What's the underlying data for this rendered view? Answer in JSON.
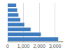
{
  "chart_data": {
    "type": "bar",
    "orientation": "horizontal",
    "categories": [
      null,
      null,
      null,
      null,
      null,
      null,
      null,
      null
    ],
    "values": [
      3200,
      2100,
      1450,
      1050,
      800,
      680,
      600,
      540
    ],
    "color": "#3d7bbf",
    "xlim": [
      0,
      3500
    ],
    "xticks": [
      0,
      {
        "value": 1000,
        "label": "1,000"
      },
      {
        "value": 2000,
        "label": "2,000"
      },
      {
        "value": 3000,
        "label": "3,000"
      }
    ],
    "grid": true
  }
}
